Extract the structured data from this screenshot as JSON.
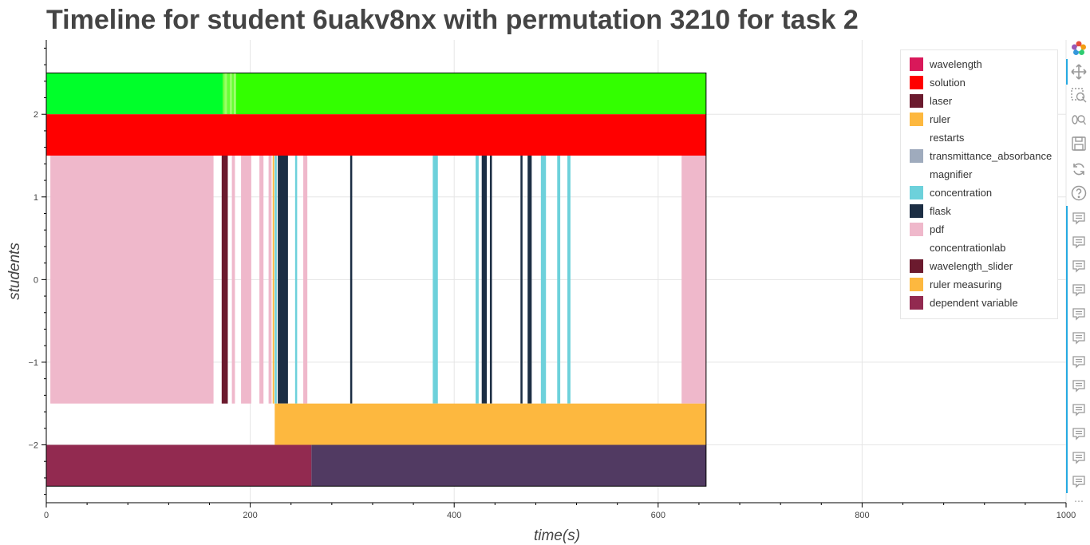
{
  "title": "Timeline for student 6uakv8nx with permutation 3210 for task 2",
  "chart_data": {
    "type": "bar",
    "orientation": "horizontal-segments",
    "xlabel": "time(s)",
    "ylabel": "students",
    "xlim": [
      0,
      1000
    ],
    "ylim": [
      -2.7,
      2.9
    ],
    "x_ticks": [
      0,
      200,
      400,
      600,
      800,
      1000
    ],
    "y_ticks": [
      -2,
      -1,
      0,
      1,
      2
    ],
    "x_tick_labels": [
      "0",
      "200",
      "400",
      "600",
      "800",
      "1000"
    ],
    "y_tick_labels": [
      "−2",
      "−1",
      "0",
      "1",
      "2"
    ],
    "grid": true,
    "legend_position": "top-right",
    "segments": [
      {
        "series": "restarts",
        "y0": 2.0,
        "y1": 2.5,
        "x0": 0,
        "x1": 173,
        "color": "#00ff2a"
      },
      {
        "series": "restarts",
        "y0": 2.0,
        "y1": 2.5,
        "x0": 173,
        "x1": 175,
        "color": "#66ff33"
      },
      {
        "series": "restarts",
        "y0": 2.0,
        "y1": 2.5,
        "x0": 175,
        "x1": 177,
        "color": "#99ff66"
      },
      {
        "series": "restarts",
        "y0": 2.0,
        "y1": 2.5,
        "x0": 177,
        "x1": 180,
        "color": "#66ff33"
      },
      {
        "series": "restarts",
        "y0": 2.0,
        "y1": 2.5,
        "x0": 180,
        "x1": 182,
        "color": "#99ff66"
      },
      {
        "series": "restarts",
        "y0": 2.0,
        "y1": 2.5,
        "x0": 182,
        "x1": 184,
        "color": "#66ff33"
      },
      {
        "series": "restarts",
        "y0": 2.0,
        "y1": 2.5,
        "x0": 184,
        "x1": 186,
        "color": "#99ff66"
      },
      {
        "series": "restarts",
        "y0": 2.0,
        "y1": 2.5,
        "x0": 186,
        "x1": 647,
        "color": "#33ff00"
      },
      {
        "series": "solution",
        "y0": 1.5,
        "y1": 2.0,
        "x0": 0,
        "x1": 647,
        "color": "#ff0000"
      },
      {
        "series": "pdf",
        "y0": -1.5,
        "y1": 1.5,
        "x0": 4,
        "x1": 164,
        "color": "#efb8cb"
      },
      {
        "series": "laser",
        "y0": -1.5,
        "y1": 1.5,
        "x0": 172,
        "x1": 178,
        "color": "#6b1a2e"
      },
      {
        "series": "pdf",
        "y0": -1.5,
        "y1": 1.5,
        "x0": 182,
        "x1": 185,
        "color": "#efb8cb"
      },
      {
        "series": "pdf",
        "y0": -1.5,
        "y1": 1.5,
        "x0": 191,
        "x1": 201,
        "color": "#efb8cb"
      },
      {
        "series": "pdf",
        "y0": -1.5,
        "y1": 1.5,
        "x0": 209,
        "x1": 213,
        "color": "#efb8cb"
      },
      {
        "series": "pdf",
        "y0": -1.5,
        "y1": 1.5,
        "x0": 218,
        "x1": 221,
        "color": "#efb8cb"
      },
      {
        "series": "ruler",
        "y0": -1.5,
        "y1": 1.5,
        "x0": 222,
        "x1": 223.5,
        "color": "#fdb83f"
      },
      {
        "series": "concentration",
        "y0": -1.5,
        "y1": 1.5,
        "x0": 224,
        "x1": 226,
        "color": "#6dd1db"
      },
      {
        "series": "flask",
        "y0": -1.5,
        "y1": 1.5,
        "x0": 227,
        "x1": 237,
        "color": "#1c2e44"
      },
      {
        "series": "concentration",
        "y0": -1.5,
        "y1": 1.5,
        "x0": 244,
        "x1": 246,
        "color": "#6dd1db"
      },
      {
        "series": "pdf",
        "y0": -1.5,
        "y1": 1.5,
        "x0": 252,
        "x1": 256,
        "color": "#efb8cb"
      },
      {
        "series": "flask",
        "y0": -1.5,
        "y1": 1.5,
        "x0": 298,
        "x1": 300,
        "color": "#1c2e44"
      },
      {
        "series": "concentration",
        "y0": -1.5,
        "y1": 1.5,
        "x0": 379,
        "x1": 384,
        "color": "#6dd1db"
      },
      {
        "series": "concentration",
        "y0": -1.5,
        "y1": 1.5,
        "x0": 421,
        "x1": 424,
        "color": "#6dd1db"
      },
      {
        "series": "flask",
        "y0": -1.5,
        "y1": 1.5,
        "x0": 427,
        "x1": 432,
        "color": "#1c2e44"
      },
      {
        "series": "flask",
        "y0": -1.5,
        "y1": 1.5,
        "x0": 435,
        "x1": 437,
        "color": "#1c2e44"
      },
      {
        "series": "flask",
        "y0": -1.5,
        "y1": 1.5,
        "x0": 465,
        "x1": 467,
        "color": "#1c2e44"
      },
      {
        "series": "flask",
        "y0": -1.5,
        "y1": 1.5,
        "x0": 472,
        "x1": 476,
        "color": "#1c2e44"
      },
      {
        "series": "concentration",
        "y0": -1.5,
        "y1": 1.5,
        "x0": 485,
        "x1": 490,
        "color": "#6dd1db"
      },
      {
        "series": "concentration",
        "y0": -1.5,
        "y1": 1.5,
        "x0": 501,
        "x1": 504,
        "color": "#6dd1db"
      },
      {
        "series": "concentration",
        "y0": -1.5,
        "y1": 1.5,
        "x0": 511,
        "x1": 514,
        "color": "#6dd1db"
      },
      {
        "series": "pdf",
        "y0": -1.5,
        "y1": 1.5,
        "x0": 623,
        "x1": 647,
        "color": "#efb8cb"
      },
      {
        "series": "ruler measuring",
        "y0": -2.0,
        "y1": -1.5,
        "x0": 224,
        "x1": 647,
        "color": "#fdb83f"
      },
      {
        "series": "dependent variable",
        "y0": -2.5,
        "y1": -2.0,
        "x0": 0,
        "x1": 260,
        "color": "#922a50"
      },
      {
        "series": "dependent variable",
        "y0": -2.5,
        "y1": -2.0,
        "x0": 260,
        "x1": 647,
        "color": "#513a62"
      }
    ],
    "outline": {
      "x0": 0,
      "x1": 647,
      "y0": -2.5,
      "y1": 2.5
    }
  },
  "legend": [
    {
      "label": "wavelength",
      "color": "#d9185a"
    },
    {
      "label": "solution",
      "color": "#ff0000"
    },
    {
      "label": "laser",
      "color": "#6b1a2e"
    },
    {
      "label": "ruler",
      "color": "#fdb83f"
    },
    {
      "label": "restarts",
      "color": "#ffffff"
    },
    {
      "label": "transmittance_absorbance",
      "color": "#9fabbd"
    },
    {
      "label": "magnifier",
      "color": "#ffffff"
    },
    {
      "label": "concentration",
      "color": "#6dd1db"
    },
    {
      "label": "flask",
      "color": "#1c2e44"
    },
    {
      "label": "pdf",
      "color": "#efb8cb"
    },
    {
      "label": "concentrationlab",
      "color": "#ffffff"
    },
    {
      "label": "wavelength_slider",
      "color": "#6b1a2e"
    },
    {
      "label": "ruler measuring",
      "color": "#fdb83f"
    },
    {
      "label": "dependent variable",
      "color": "#922a50"
    }
  ],
  "toolbar": {
    "tools": [
      "bokeh-logo-icon",
      "pan-icon",
      "box-zoom-icon",
      "wheel-zoom-icon",
      "save-icon",
      "reset-icon",
      "help-icon"
    ],
    "hover_tool_count": 12,
    "more_label": "⋯"
  }
}
